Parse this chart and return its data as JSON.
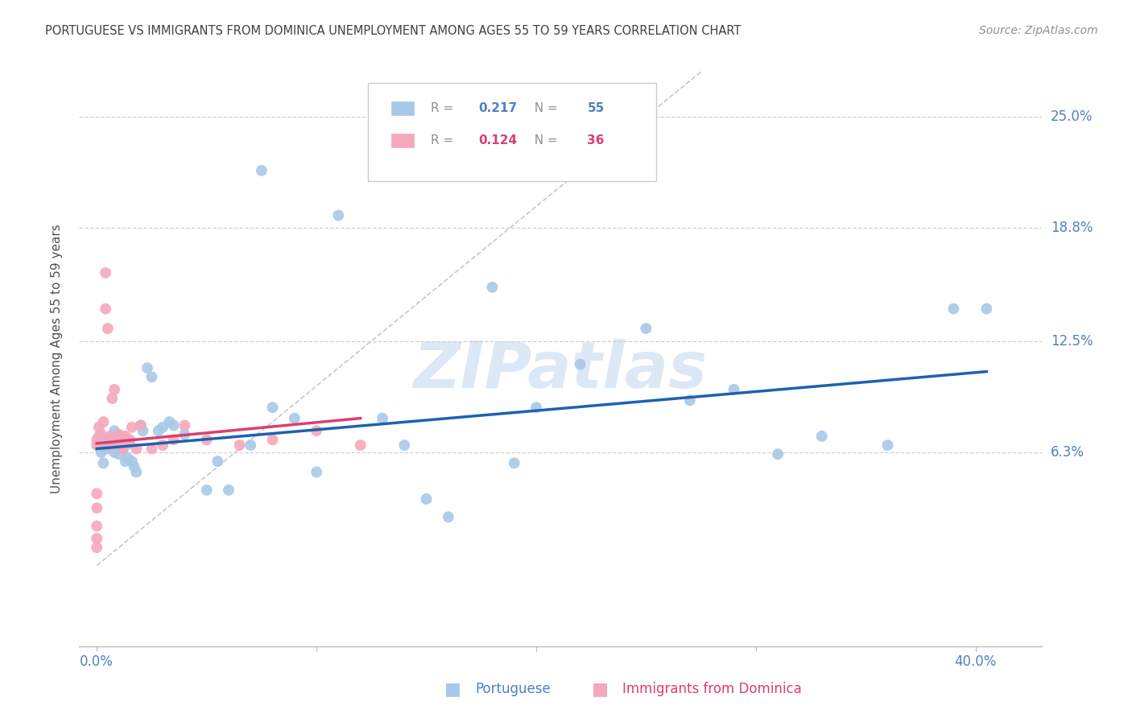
{
  "title": "PORTUGUESE VS IMMIGRANTS FROM DOMINICA UNEMPLOYMENT AMONG AGES 55 TO 59 YEARS CORRELATION CHART",
  "source": "Source: ZipAtlas.com",
  "xlabel_blue": "Portuguese",
  "xlabel_pink": "Immigrants from Dominica",
  "ylabel": "Unemployment Among Ages 55 to 59 years",
  "x_tick_positions": [
    0.0,
    0.1,
    0.2,
    0.3,
    0.4
  ],
  "x_tick_labels": [
    "0.0%",
    "",
    "",
    "",
    "40.0%"
  ],
  "y_tick_labels": [
    "25.0%",
    "18.8%",
    "12.5%",
    "6.3%"
  ],
  "y_ticks": [
    0.25,
    0.188,
    0.125,
    0.063
  ],
  "xlim": [
    -0.008,
    0.43
  ],
  "ylim": [
    -0.045,
    0.275
  ],
  "blue_R": "0.217",
  "blue_N": "55",
  "pink_R": "0.124",
  "pink_N": "36",
  "blue_color": "#a8c8e8",
  "pink_color": "#f5a8bc",
  "blue_line_color": "#2060b0",
  "pink_line_color": "#d84070",
  "diag_line_color": "#c8c8c8",
  "grid_color": "#d0d0d0",
  "title_color": "#404040",
  "axis_label_color": "#5080c0",
  "source_color": "#909090",
  "watermark": "ZIPatlas",
  "watermark_color": "#dce8f5",
  "blue_scatter_x": [
    0.001,
    0.001,
    0.002,
    0.003,
    0.004,
    0.005,
    0.005,
    0.006,
    0.007,
    0.008,
    0.008,
    0.009,
    0.01,
    0.011,
    0.012,
    0.013,
    0.014,
    0.015,
    0.016,
    0.017,
    0.018,
    0.02,
    0.021,
    0.023,
    0.025,
    0.028,
    0.03,
    0.033,
    0.035,
    0.04,
    0.05,
    0.055,
    0.06,
    0.07,
    0.075,
    0.08,
    0.09,
    0.1,
    0.11,
    0.13,
    0.14,
    0.15,
    0.16,
    0.18,
    0.19,
    0.2,
    0.22,
    0.25,
    0.27,
    0.29,
    0.31,
    0.33,
    0.36,
    0.39,
    0.405
  ],
  "blue_scatter_y": [
    0.067,
    0.072,
    0.063,
    0.057,
    0.065,
    0.065,
    0.07,
    0.07,
    0.068,
    0.075,
    0.063,
    0.068,
    0.062,
    0.072,
    0.065,
    0.058,
    0.06,
    0.068,
    0.058,
    0.055,
    0.052,
    0.078,
    0.075,
    0.11,
    0.105,
    0.075,
    0.077,
    0.08,
    0.078,
    0.073,
    0.042,
    0.058,
    0.042,
    0.067,
    0.22,
    0.088,
    0.082,
    0.052,
    0.195,
    0.082,
    0.067,
    0.037,
    0.027,
    0.155,
    0.057,
    0.088,
    0.112,
    0.132,
    0.092,
    0.098,
    0.062,
    0.072,
    0.067,
    0.143,
    0.143
  ],
  "pink_scatter_x": [
    0.0,
    0.0,
    0.0,
    0.0,
    0.0,
    0.0,
    0.0,
    0.001,
    0.002,
    0.003,
    0.004,
    0.004,
    0.005,
    0.006,
    0.006,
    0.007,
    0.008,
    0.009,
    0.01,
    0.011,
    0.012,
    0.013,
    0.014,
    0.015,
    0.016,
    0.018,
    0.02,
    0.025,
    0.03,
    0.035,
    0.04,
    0.05,
    0.065,
    0.08,
    0.1,
    0.12
  ],
  "pink_scatter_y": [
    0.067,
    0.07,
    0.04,
    0.032,
    0.022,
    0.015,
    0.01,
    0.077,
    0.073,
    0.08,
    0.163,
    0.143,
    0.132,
    0.072,
    0.067,
    0.093,
    0.098,
    0.07,
    0.073,
    0.067,
    0.065,
    0.072,
    0.07,
    0.07,
    0.077,
    0.065,
    0.078,
    0.065,
    0.067,
    0.07,
    0.078,
    0.07,
    0.067,
    0.07,
    0.075,
    0.067
  ],
  "blue_line_x": [
    0.0,
    0.405
  ],
  "blue_line_y": [
    0.065,
    0.108
  ],
  "pink_line_x": [
    0.0,
    0.12
  ],
  "pink_line_y": [
    0.068,
    0.082
  ]
}
